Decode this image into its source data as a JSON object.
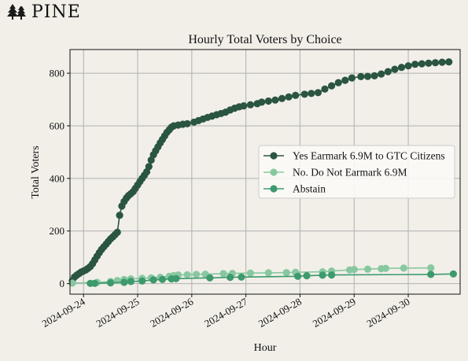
{
  "brand": {
    "name": "PINE",
    "logo_icon": "pine-trees-icon"
  },
  "colors": {
    "background": "#f2efe9",
    "plot_background": "#f2efe9",
    "grid": "#b0b0b0",
    "yes": "#2a5540",
    "no": "#88c8a0",
    "abstain": "#3c9a6c"
  },
  "chart_data": {
    "type": "line",
    "title": "Hourly Total Voters by Choice",
    "xlabel": "Hour",
    "ylabel": "Total Voters",
    "x_type": "datetime",
    "xlim": [
      "2024-09-23 18:00",
      "2024-09-30 23:00"
    ],
    "ylim": [
      -40,
      890
    ],
    "x_ticks": [
      "2024-09-24",
      "2024-09-25",
      "2024-09-26",
      "2024-09-27",
      "2024-09-28",
      "2024-09-29",
      "2024-09-30"
    ],
    "y_ticks": [
      0,
      200,
      400,
      600,
      800
    ],
    "grid": true,
    "legend_position": "center-right",
    "series": [
      {
        "name": "Yes Earmark 6.9M to GTC Citizens",
        "color": "#2a5540",
        "points": [
          [
            "2024-09-23 19:00",
            10
          ],
          [
            "2024-09-23 20:00",
            25
          ],
          [
            "2024-09-23 21:00",
            32
          ],
          [
            "2024-09-23 22:00",
            38
          ],
          [
            "2024-09-23 23:00",
            44
          ],
          [
            "2024-09-24 00:00",
            48
          ],
          [
            "2024-09-24 01:00",
            52
          ],
          [
            "2024-09-24 02:00",
            58
          ],
          [
            "2024-09-24 03:00",
            65
          ],
          [
            "2024-09-24 04:00",
            76
          ],
          [
            "2024-09-24 05:00",
            90
          ],
          [
            "2024-09-24 06:00",
            104
          ],
          [
            "2024-09-24 07:00",
            118
          ],
          [
            "2024-09-24 08:00",
            130
          ],
          [
            "2024-09-24 09:00",
            140
          ],
          [
            "2024-09-24 10:00",
            150
          ],
          [
            "2024-09-24 11:00",
            160
          ],
          [
            "2024-09-24 12:00",
            170
          ],
          [
            "2024-09-24 13:00",
            178
          ],
          [
            "2024-09-24 14:00",
            186
          ],
          [
            "2024-09-24 15:00",
            195
          ],
          [
            "2024-09-24 16:00",
            260
          ],
          [
            "2024-09-24 17:00",
            295
          ],
          [
            "2024-09-24 18:00",
            312
          ],
          [
            "2024-09-24 19:00",
            325
          ],
          [
            "2024-09-24 20:00",
            335
          ],
          [
            "2024-09-24 21:00",
            342
          ],
          [
            "2024-09-24 22:00",
            350
          ],
          [
            "2024-09-24 23:00",
            362
          ],
          [
            "2024-09-25 00:00",
            375
          ],
          [
            "2024-09-25 01:00",
            388
          ],
          [
            "2024-09-25 02:00",
            400
          ],
          [
            "2024-09-25 03:00",
            412
          ],
          [
            "2024-09-25 04:00",
            425
          ],
          [
            "2024-09-25 05:00",
            445
          ],
          [
            "2024-09-25 06:00",
            470
          ],
          [
            "2024-09-25 07:00",
            490
          ],
          [
            "2024-09-25 08:00",
            505
          ],
          [
            "2024-09-25 09:00",
            520
          ],
          [
            "2024-09-25 10:00",
            535
          ],
          [
            "2024-09-25 11:00",
            548
          ],
          [
            "2024-09-25 12:00",
            562
          ],
          [
            "2024-09-25 13:00",
            575
          ],
          [
            "2024-09-25 14:00",
            585
          ],
          [
            "2024-09-25 15:00",
            595
          ],
          [
            "2024-09-25 16:00",
            600
          ],
          [
            "2024-09-25 18:00",
            603
          ],
          [
            "2024-09-25 20:00",
            606
          ],
          [
            "2024-09-25 22:00",
            608
          ],
          [
            "2024-09-26 01:00",
            614
          ],
          [
            "2024-09-26 03:00",
            620
          ],
          [
            "2024-09-26 05:00",
            626
          ],
          [
            "2024-09-26 07:00",
            632
          ],
          [
            "2024-09-26 09:00",
            637
          ],
          [
            "2024-09-26 11:00",
            642
          ],
          [
            "2024-09-26 13:00",
            647
          ],
          [
            "2024-09-26 15:00",
            652
          ],
          [
            "2024-09-26 17:00",
            660
          ],
          [
            "2024-09-26 19:00",
            667
          ],
          [
            "2024-09-26 21:00",
            672
          ],
          [
            "2024-09-26 23:00",
            676
          ],
          [
            "2024-09-27 02:00",
            680
          ],
          [
            "2024-09-27 05:00",
            684
          ],
          [
            "2024-09-27 07:00",
            690
          ],
          [
            "2024-09-27 10:00",
            694
          ],
          [
            "2024-09-27 13:00",
            698
          ],
          [
            "2024-09-27 16:00",
            704
          ],
          [
            "2024-09-27 19:00",
            710
          ],
          [
            "2024-09-27 22:00",
            716
          ],
          [
            "2024-09-28 02:00",
            720
          ],
          [
            "2024-09-28 05:00",
            723
          ],
          [
            "2024-09-28 08:00",
            726
          ],
          [
            "2024-09-28 11:00",
            740
          ],
          [
            "2024-09-28 14:00",
            752
          ],
          [
            "2024-09-28 17:00",
            764
          ],
          [
            "2024-09-28 20:00",
            773
          ],
          [
            "2024-09-28 23:00",
            782
          ],
          [
            "2024-09-29 03:00",
            787
          ],
          [
            "2024-09-29 06:00",
            788
          ],
          [
            "2024-09-29 09:00",
            790
          ],
          [
            "2024-09-29 12:00",
            797
          ],
          [
            "2024-09-29 15:00",
            806
          ],
          [
            "2024-09-29 18:00",
            815
          ],
          [
            "2024-09-29 21:00",
            822
          ],
          [
            "2024-09-30 00:00",
            828
          ],
          [
            "2024-09-30 03:00",
            834
          ],
          [
            "2024-09-30 06:00",
            836
          ],
          [
            "2024-09-30 09:00",
            838
          ],
          [
            "2024-09-30 12:00",
            840
          ],
          [
            "2024-09-30 15:00",
            842
          ],
          [
            "2024-09-30 18:00",
            843
          ]
        ]
      },
      {
        "name": "No. Do Not Earmark 6.9M",
        "color": "#88c8a0",
        "points": [
          [
            "2024-09-23 19:00",
            2
          ],
          [
            "2024-09-24 06:00",
            5
          ],
          [
            "2024-09-24 12:00",
            8
          ],
          [
            "2024-09-24 15:00",
            12
          ],
          [
            "2024-09-24 18:00",
            16
          ],
          [
            "2024-09-24 21:00",
            18
          ],
          [
            "2024-09-25 02:00",
            20
          ],
          [
            "2024-09-25 06:00",
            22
          ],
          [
            "2024-09-25 10:00",
            24
          ],
          [
            "2024-09-25 14:00",
            28
          ],
          [
            "2024-09-25 16:00",
            31
          ],
          [
            "2024-09-25 18:00",
            33
          ],
          [
            "2024-09-25 22:00",
            34
          ],
          [
            "2024-09-26 02:00",
            35
          ],
          [
            "2024-09-26 06:00",
            36
          ],
          [
            "2024-09-26 14:00",
            38
          ],
          [
            "2024-09-26 18:00",
            39
          ],
          [
            "2024-09-27 02:00",
            40
          ],
          [
            "2024-09-27 10:00",
            41
          ],
          [
            "2024-09-27 18:00",
            42
          ],
          [
            "2024-09-27 22:00",
            43
          ],
          [
            "2024-09-28 10:00",
            45
          ],
          [
            "2024-09-28 14:00",
            48
          ],
          [
            "2024-09-28 22:00",
            52
          ],
          [
            "2024-09-29 00:00",
            54
          ],
          [
            "2024-09-29 06:00",
            55
          ],
          [
            "2024-09-29 12:00",
            57
          ],
          [
            "2024-09-29 14:00",
            58
          ],
          [
            "2024-09-29 22:00",
            59
          ],
          [
            "2024-09-30 10:00",
            60
          ]
        ]
      },
      {
        "name": "Abstain",
        "color": "#3c9a6c",
        "points": [
          [
            "2024-09-24 03:00",
            1
          ],
          [
            "2024-09-24 05:00",
            1
          ],
          [
            "2024-09-24 12:00",
            3
          ],
          [
            "2024-09-24 18:00",
            5
          ],
          [
            "2024-09-24 21:00",
            8
          ],
          [
            "2024-09-25 02:00",
            10
          ],
          [
            "2024-09-25 07:00",
            14
          ],
          [
            "2024-09-25 11:00",
            16
          ],
          [
            "2024-09-25 15:00",
            18
          ],
          [
            "2024-09-25 17:00",
            19
          ],
          [
            "2024-09-26 08:00",
            22
          ],
          [
            "2024-09-26 17:00",
            24
          ],
          [
            "2024-09-26 22:00",
            25
          ],
          [
            "2024-09-27 23:00",
            28
          ],
          [
            "2024-09-28 03:00",
            30
          ],
          [
            "2024-09-28 10:00",
            32
          ],
          [
            "2024-09-28 14:00",
            33
          ],
          [
            "2024-09-30 10:00",
            35
          ],
          [
            "2024-09-30 20:00",
            37
          ]
        ]
      }
    ]
  }
}
